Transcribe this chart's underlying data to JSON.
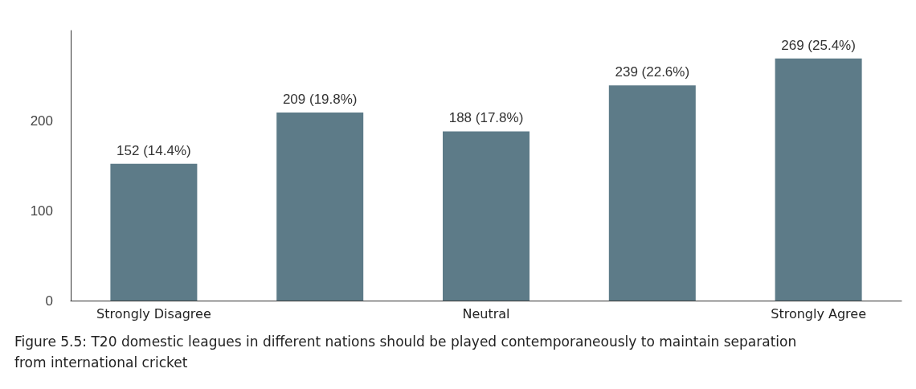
{
  "chart_data": {
    "type": "bar",
    "categories": [
      "Strongly Disagree",
      null,
      "Neutral",
      null,
      "Strongly Agree"
    ],
    "values": [
      152,
      209,
      188,
      239,
      269
    ],
    "value_labels": [
      "152 (14.4%)",
      "209 (19.8%)",
      "188 (17.8%)",
      "239 (22.6%)",
      "269 (25.4%)"
    ],
    "color": "#5d7b88",
    "ylim": [
      0,
      300
    ],
    "yticks": [
      0,
      100,
      200
    ],
    "grid": false,
    "annotations": [
      "Figure 5.5: T20 domestic leagues in different nations should be played contemporaneously to maintain separation from international cricket"
    ]
  }
}
